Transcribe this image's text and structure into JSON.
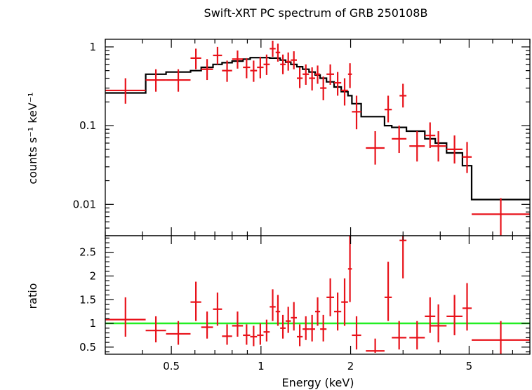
{
  "chart_data": [
    {
      "type": "scatter",
      "panel": "spectrum",
      "title": "Swift-XRT PC spectrum of GRB 250108B",
      "ylabel": "counts s⁻¹ keV⁻¹",
      "x_scale": "log",
      "y_scale": "log",
      "xlim": [
        0.3,
        8.0
      ],
      "ylim": [
        0.004,
        1.25
      ],
      "y_ticks": [
        0.01,
        0.1,
        1
      ],
      "y_tick_labels": [
        "0.01",
        "0.1",
        "1"
      ],
      "colors": {
        "data": "#e8121a",
        "model": "#000000"
      },
      "series": [
        {
          "kind": "data",
          "points": [
            {
              "x0": 0.3,
              "x1": 0.41,
              "y": 0.28,
              "ylo": 0.19,
              "yhi": 0.4
            },
            {
              "x0": 0.41,
              "x1": 0.48,
              "y": 0.38,
              "ylo": 0.27,
              "yhi": 0.52
            },
            {
              "x0": 0.48,
              "x1": 0.58,
              "y": 0.38,
              "ylo": 0.27,
              "yhi": 0.52
            },
            {
              "x0": 0.58,
              "x1": 0.63,
              "y": 0.72,
              "ylo": 0.52,
              "yhi": 0.95
            },
            {
              "x0": 0.63,
              "x1": 0.69,
              "y": 0.52,
              "ylo": 0.38,
              "yhi": 0.7
            },
            {
              "x0": 0.69,
              "x1": 0.74,
              "y": 0.78,
              "ylo": 0.6,
              "yhi": 1.0
            },
            {
              "x0": 0.74,
              "x1": 0.8,
              "y": 0.5,
              "ylo": 0.36,
              "yhi": 0.67
            },
            {
              "x0": 0.8,
              "x1": 0.87,
              "y": 0.7,
              "ylo": 0.53,
              "yhi": 0.9
            },
            {
              "x0": 0.87,
              "x1": 0.92,
              "y": 0.55,
              "ylo": 0.4,
              "yhi": 0.72
            },
            {
              "x0": 0.92,
              "x1": 0.97,
              "y": 0.5,
              "ylo": 0.36,
              "yhi": 0.67
            },
            {
              "x0": 0.97,
              "x1": 1.02,
              "y": 0.55,
              "ylo": 0.4,
              "yhi": 0.75
            },
            {
              "x0": 1.02,
              "x1": 1.07,
              "y": 0.6,
              "ylo": 0.44,
              "yhi": 0.8
            },
            {
              "x0": 1.07,
              "x1": 1.12,
              "y": 0.95,
              "ylo": 0.75,
              "yhi": 1.2
            },
            {
              "x0": 1.12,
              "x1": 1.16,
              "y": 0.85,
              "ylo": 0.65,
              "yhi": 1.1
            },
            {
              "x0": 1.16,
              "x1": 1.21,
              "y": 0.6,
              "ylo": 0.45,
              "yhi": 0.8
            },
            {
              "x0": 1.21,
              "x1": 1.26,
              "y": 0.65,
              "ylo": 0.5,
              "yhi": 0.85
            },
            {
              "x0": 1.26,
              "x1": 1.32,
              "y": 0.68,
              "ylo": 0.52,
              "yhi": 0.88
            },
            {
              "x0": 1.32,
              "x1": 1.38,
              "y": 0.4,
              "ylo": 0.3,
              "yhi": 0.55
            },
            {
              "x0": 1.38,
              "x1": 1.45,
              "y": 0.45,
              "ylo": 0.33,
              "yhi": 0.6
            },
            {
              "x0": 1.45,
              "x1": 1.52,
              "y": 0.4,
              "ylo": 0.28,
              "yhi": 0.55
            },
            {
              "x0": 1.52,
              "x1": 1.58,
              "y": 0.45,
              "ylo": 0.34,
              "yhi": 0.58
            },
            {
              "x0": 1.58,
              "x1": 1.66,
              "y": 0.3,
              "ylo": 0.21,
              "yhi": 0.42
            },
            {
              "x0": 1.66,
              "x1": 1.76,
              "y": 0.45,
              "ylo": 0.33,
              "yhi": 0.6
            },
            {
              "x0": 1.76,
              "x1": 1.86,
              "y": 0.35,
              "ylo": 0.24,
              "yhi": 0.48
            },
            {
              "x0": 1.86,
              "x1": 1.96,
              "y": 0.28,
              "ylo": 0.18,
              "yhi": 0.4
            },
            {
              "x0": 1.96,
              "x1": 2.02,
              "y": 0.45,
              "ylo": 0.3,
              "yhi": 0.62
            },
            {
              "x0": 2.02,
              "x1": 2.17,
              "y": 0.15,
              "ylo": 0.09,
              "yhi": 0.24
            },
            {
              "x0": 2.25,
              "x1": 2.6,
              "y": 0.052,
              "ylo": 0.032,
              "yhi": 0.085
            },
            {
              "x0": 2.6,
              "x1": 2.75,
              "y": 0.16,
              "ylo": 0.11,
              "yhi": 0.24
            },
            {
              "x0": 2.75,
              "x1": 3.08,
              "y": 0.068,
              "ylo": 0.045,
              "yhi": 0.1
            },
            {
              "x0": 2.92,
              "x1": 3.08,
              "y": 0.24,
              "ylo": 0.17,
              "yhi": 0.34
            },
            {
              "x0": 3.15,
              "x1": 3.55,
              "y": 0.055,
              "ylo": 0.035,
              "yhi": 0.085
            },
            {
              "x0": 3.55,
              "x1": 3.85,
              "y": 0.075,
              "ylo": 0.052,
              "yhi": 0.11
            },
            {
              "x0": 3.7,
              "x1": 4.2,
              "y": 0.055,
              "ylo": 0.035,
              "yhi": 0.085
            },
            {
              "x0": 4.2,
              "x1": 4.75,
              "y": 0.05,
              "ylo": 0.033,
              "yhi": 0.075
            },
            {
              "x0": 4.75,
              "x1": 5.1,
              "y": 0.04,
              "ylo": 0.025,
              "yhi": 0.062
            },
            {
              "x0": 5.1,
              "x1": 8.0,
              "y": 0.0075,
              "ylo": 0.004,
              "yhi": 0.012
            }
          ]
        },
        {
          "kind": "model",
          "steps": [
            {
              "x0": 0.3,
              "x1": 0.41,
              "y": 0.26
            },
            {
              "x0": 0.41,
              "x1": 0.48,
              "y": 0.45
            },
            {
              "x0": 0.48,
              "x1": 0.58,
              "y": 0.48
            },
            {
              "x0": 0.58,
              "x1": 0.63,
              "y": 0.5
            },
            {
              "x0": 0.63,
              "x1": 0.69,
              "y": 0.55
            },
            {
              "x0": 0.69,
              "x1": 0.74,
              "y": 0.6
            },
            {
              "x0": 0.74,
              "x1": 0.8,
              "y": 0.63
            },
            {
              "x0": 0.8,
              "x1": 0.87,
              "y": 0.66
            },
            {
              "x0": 0.87,
              "x1": 0.92,
              "y": 0.7
            },
            {
              "x0": 0.92,
              "x1": 1.07,
              "y": 0.73
            },
            {
              "x0": 1.07,
              "x1": 1.16,
              "y": 0.72
            },
            {
              "x0": 1.16,
              "x1": 1.21,
              "y": 0.68
            },
            {
              "x0": 1.21,
              "x1": 1.26,
              "y": 0.64
            },
            {
              "x0": 1.26,
              "x1": 1.32,
              "y": 0.6
            },
            {
              "x0": 1.32,
              "x1": 1.38,
              "y": 0.56
            },
            {
              "x0": 1.38,
              "x1": 1.45,
              "y": 0.52
            },
            {
              "x0": 1.45,
              "x1": 1.52,
              "y": 0.48
            },
            {
              "x0": 1.52,
              "x1": 1.58,
              "y": 0.44
            },
            {
              "x0": 1.58,
              "x1": 1.66,
              "y": 0.4
            },
            {
              "x0": 1.66,
              "x1": 1.76,
              "y": 0.36
            },
            {
              "x0": 1.76,
              "x1": 1.86,
              "y": 0.31
            },
            {
              "x0": 1.86,
              "x1": 1.96,
              "y": 0.27
            },
            {
              "x0": 1.96,
              "x1": 2.02,
              "y": 0.24
            },
            {
              "x0": 2.02,
              "x1": 2.17,
              "y": 0.19
            },
            {
              "x0": 2.17,
              "x1": 2.6,
              "y": 0.13
            },
            {
              "x0": 2.6,
              "x1": 2.75,
              "y": 0.1
            },
            {
              "x0": 2.75,
              "x1": 3.08,
              "y": 0.095
            },
            {
              "x0": 3.08,
              "x1": 3.55,
              "y": 0.085
            },
            {
              "x0": 3.55,
              "x1": 3.85,
              "y": 0.068
            },
            {
              "x0": 3.85,
              "x1": 4.2,
              "y": 0.06
            },
            {
              "x0": 4.2,
              "x1": 4.75,
              "y": 0.045
            },
            {
              "x0": 4.75,
              "x1": 5.1,
              "y": 0.031
            },
            {
              "x0": 5.1,
              "x1": 8.0,
              "y": 0.0115
            }
          ]
        }
      ]
    },
    {
      "type": "scatter",
      "panel": "ratio",
      "xlabel": "Energy (keV)",
      "ylabel": "ratio",
      "x_scale": "log",
      "y_scale": "linear",
      "xlim": [
        0.3,
        8.0
      ],
      "ylim": [
        0.35,
        2.85
      ],
      "x_ticks": [
        0.5,
        1,
        2,
        5
      ],
      "x_tick_labels": [
        "0.5",
        "1",
        "2",
        "5"
      ],
      "y_ticks": [
        0.5,
        1,
        1.5,
        2,
        2.5
      ],
      "y_tick_labels": [
        "0.5",
        "1",
        "1.5",
        "2",
        "2.5"
      ],
      "reference_line": 1,
      "colors": {
        "data": "#e8121a",
        "reference": "#22ee22"
      },
      "series": [
        {
          "kind": "data",
          "points": [
            {
              "x0": 0.3,
              "x1": 0.41,
              "y": 1.08,
              "ylo": 0.72,
              "yhi": 1.55
            },
            {
              "x0": 0.41,
              "x1": 0.48,
              "y": 0.85,
              "ylo": 0.6,
              "yhi": 1.15
            },
            {
              "x0": 0.48,
              "x1": 0.58,
              "y": 0.78,
              "ylo": 0.55,
              "yhi": 1.05
            },
            {
              "x0": 0.58,
              "x1": 0.63,
              "y": 1.45,
              "ylo": 1.05,
              "yhi": 1.88
            },
            {
              "x0": 0.63,
              "x1": 0.69,
              "y": 0.92,
              "ylo": 0.68,
              "yhi": 1.25
            },
            {
              "x0": 0.69,
              "x1": 0.74,
              "y": 1.3,
              "ylo": 0.95,
              "yhi": 1.65
            },
            {
              "x0": 0.74,
              "x1": 0.8,
              "y": 0.73,
              "ylo": 0.55,
              "yhi": 0.98
            },
            {
              "x0": 0.8,
              "x1": 0.87,
              "y": 0.95,
              "ylo": 0.72,
              "yhi": 1.25
            },
            {
              "x0": 0.87,
              "x1": 0.92,
              "y": 0.75,
              "ylo": 0.55,
              "yhi": 0.98
            },
            {
              "x0": 0.92,
              "x1": 0.97,
              "y": 0.72,
              "ylo": 0.52,
              "yhi": 0.95
            },
            {
              "x0": 0.97,
              "x1": 1.02,
              "y": 0.75,
              "ylo": 0.55,
              "yhi": 1.0
            },
            {
              "x0": 1.02,
              "x1": 1.07,
              "y": 0.82,
              "ylo": 0.62,
              "yhi": 1.08
            },
            {
              "x0": 1.07,
              "x1": 1.12,
              "y": 1.35,
              "ylo": 1.05,
              "yhi": 1.72
            },
            {
              "x0": 1.12,
              "x1": 1.16,
              "y": 1.25,
              "ylo": 0.95,
              "yhi": 1.6
            },
            {
              "x0": 1.16,
              "x1": 1.21,
              "y": 0.9,
              "ylo": 0.68,
              "yhi": 1.18
            },
            {
              "x0": 1.21,
              "x1": 1.26,
              "y": 1.05,
              "ylo": 0.8,
              "yhi": 1.35
            },
            {
              "x0": 1.26,
              "x1": 1.32,
              "y": 1.12,
              "ylo": 0.85,
              "yhi": 1.45
            },
            {
              "x0": 1.32,
              "x1": 1.38,
              "y": 0.72,
              "ylo": 0.52,
              "yhi": 0.98
            },
            {
              "x0": 1.38,
              "x1": 1.45,
              "y": 0.88,
              "ylo": 0.65,
              "yhi": 1.15
            },
            {
              "x0": 1.45,
              "x1": 1.52,
              "y": 0.88,
              "ylo": 0.62,
              "yhi": 1.18
            },
            {
              "x0": 1.52,
              "x1": 1.58,
              "y": 1.25,
              "ylo": 0.95,
              "yhi": 1.55
            },
            {
              "x0": 1.58,
              "x1": 1.66,
              "y": 0.88,
              "ylo": 0.62,
              "yhi": 1.18
            },
            {
              "x0": 1.66,
              "x1": 1.76,
              "y": 1.55,
              "ylo": 1.15,
              "yhi": 1.95
            },
            {
              "x0": 1.76,
              "x1": 1.86,
              "y": 1.25,
              "ylo": 0.85,
              "yhi": 1.65
            },
            {
              "x0": 1.86,
              "x1": 1.96,
              "y": 1.45,
              "ylo": 0.95,
              "yhi": 1.95
            },
            {
              "x0": 1.96,
              "x1": 2.02,
              "y": 2.15,
              "ylo": 1.45,
              "yhi": 2.85
            },
            {
              "x0": 2.02,
              "x1": 2.17,
              "y": 0.75,
              "ylo": 0.45,
              "yhi": 1.15
            },
            {
              "x0": 2.25,
              "x1": 2.6,
              "y": 0.42,
              "ylo": 0.38,
              "yhi": 0.68
            },
            {
              "x0": 2.6,
              "x1": 2.75,
              "y": 1.55,
              "ylo": 1.05,
              "yhi": 2.3
            },
            {
              "x0": 2.75,
              "x1": 3.08,
              "y": 0.7,
              "ylo": 0.45,
              "yhi": 1.05
            },
            {
              "x0": 2.92,
              "x1": 3.08,
              "y": 2.75,
              "ylo": 1.95,
              "yhi": 2.85
            },
            {
              "x0": 3.15,
              "x1": 3.55,
              "y": 0.7,
              "ylo": 0.45,
              "yhi": 1.05
            },
            {
              "x0": 3.55,
              "x1": 3.85,
              "y": 1.15,
              "ylo": 0.8,
              "yhi": 1.55
            },
            {
              "x0": 3.7,
              "x1": 4.2,
              "y": 0.95,
              "ylo": 0.6,
              "yhi": 1.4
            },
            {
              "x0": 4.2,
              "x1": 4.75,
              "y": 1.15,
              "ylo": 0.75,
              "yhi": 1.6
            },
            {
              "x0": 4.75,
              "x1": 5.1,
              "y": 1.32,
              "ylo": 0.85,
              "yhi": 1.85
            },
            {
              "x0": 5.1,
              "x1": 8.0,
              "y": 0.65,
              "ylo": 0.35,
              "yhi": 1.05
            }
          ]
        }
      ]
    }
  ]
}
